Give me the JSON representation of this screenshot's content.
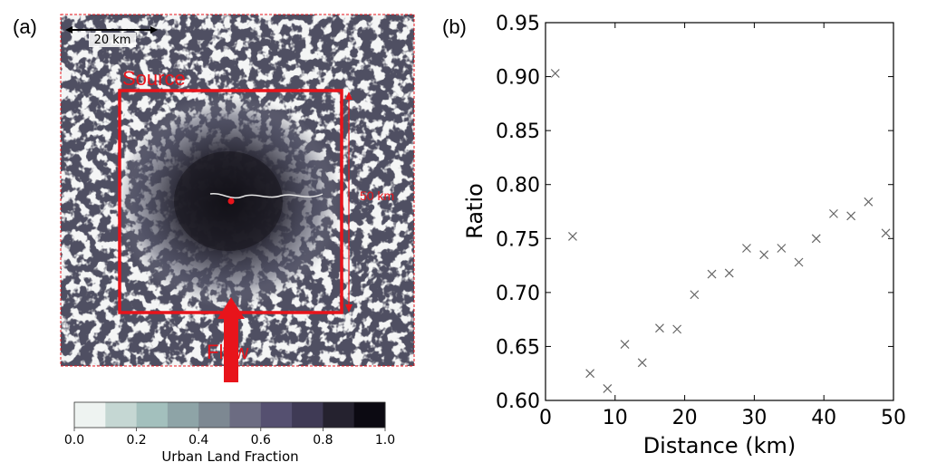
{
  "map_panel": {
    "label": "(a)",
    "scale_bar_text": "20 km",
    "source_text": "Source",
    "flow_text": "Flow",
    "size_text": "50 km",
    "accent_color": "#e8141b",
    "colorbar": {
      "label": "Urban Land Fraction",
      "ticks": [
        "0.0",
        "0.2",
        "0.4",
        "0.6",
        "0.8",
        "1.0"
      ],
      "colors": [
        "#eef3f1",
        "#c5d7d3",
        "#a3c0bd",
        "#8ea4a7",
        "#7d8892",
        "#6c6c82",
        "#555070",
        "#3f3a55",
        "#25222f",
        "#0c0a12"
      ]
    }
  },
  "chart_data": {
    "type": "scatter",
    "panel_label": "(b)",
    "xlabel": "Distance (km)",
    "ylabel": "Ratio",
    "xlim": [
      0,
      50
    ],
    "ylim": [
      0.6,
      0.95
    ],
    "xticks": [
      "0",
      "10",
      "20",
      "30",
      "40",
      "50"
    ],
    "yticks": [
      "0.60",
      "0.65",
      "0.70",
      "0.75",
      "0.80",
      "0.85",
      "0.90",
      "0.95"
    ],
    "marker": "x",
    "marker_color": "#666666",
    "grid": false,
    "x": [
      1.4,
      3.9,
      6.4,
      8.9,
      11.4,
      13.9,
      16.4,
      18.9,
      21.4,
      23.9,
      26.4,
      28.9,
      31.4,
      33.9,
      36.4,
      38.9,
      41.4,
      43.9,
      46.4,
      48.9
    ],
    "y": [
      0.903,
      0.752,
      0.625,
      0.611,
      0.652,
      0.635,
      0.667,
      0.666,
      0.698,
      0.717,
      0.718,
      0.741,
      0.735,
      0.741,
      0.728,
      0.75,
      0.773,
      0.771,
      0.784,
      0.755
    ]
  }
}
